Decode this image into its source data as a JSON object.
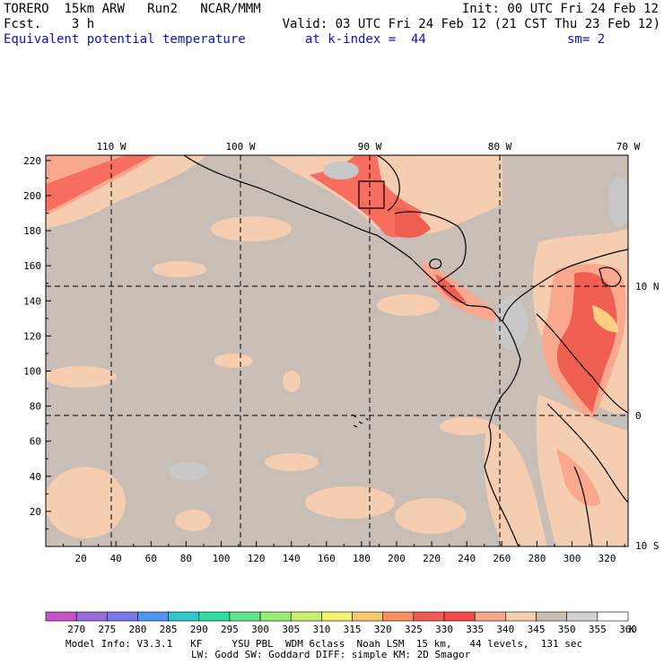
{
  "header": {
    "model": "TORERO",
    "resolution": "15km ARW",
    "run": "Run2",
    "org": "NCAR/MMM",
    "init": "Init: 00 UTC Fri 24 Feb 12",
    "fcst_label": "Fcst.",
    "fcst_value": "3 h",
    "valid": "Valid: 03 UTC Fri 24 Feb 12 (21 CST Thu 23 Feb 12)",
    "field": "Equivalent potential temperature",
    "level": "at k-index =  44",
    "smoothing": "sm= 2"
  },
  "map": {
    "top_lon_labels": [
      "110 W",
      "100 W",
      "90 W",
      "80 W",
      "70 W"
    ],
    "right_lat_labels": [
      "10 N",
      "0",
      "10 S"
    ],
    "left_grid_labels": [
      "220",
      "200",
      "180",
      "160",
      "140",
      "120",
      "100",
      "80",
      "60",
      "40",
      "20"
    ],
    "bottom_grid_labels": [
      "20",
      "40",
      "60",
      "80",
      "100",
      "120",
      "140",
      "160",
      "180",
      "200",
      "220",
      "240",
      "260",
      "280",
      "300",
      "320"
    ],
    "colors": {
      "background_gray": "#c8beb6",
      "c340": "#f5cdb1",
      "c335": "#f8a88c",
      "c330": "#f76e60",
      "c325": "#f05e52",
      "coast": "#000000",
      "light_gray": "#c8c8c8"
    }
  },
  "colorbar": {
    "labels": [
      "270",
      "275",
      "280",
      "285",
      "290",
      "295",
      "300",
      "305",
      "310",
      "315",
      "320",
      "325",
      "330",
      "335",
      "340",
      "345",
      "350",
      "355",
      "360"
    ],
    "unit": "K",
    "colors": [
      "#c855c8",
      "#9a6ad8",
      "#7a78e8",
      "#4e96f0",
      "#30c8c8",
      "#30dca6",
      "#60e68c",
      "#98ee78",
      "#c8f070",
      "#f6f070",
      "#f8c86e",
      "#f89060",
      "#f05e52",
      "#f54a48",
      "#f8a88c",
      "#f5cdb1",
      "#c8beb6",
      "#d2d2d2",
      "#ffffff"
    ]
  },
  "footer": {
    "line1": "Model Info: V3.3.1   KF     YSU PBL  WDM 6class  Noah LSM  15 km,   44 levels,  131 sec",
    "line2": "LW: Godd SW: Goddard DIFF: simple KM: 2D Smagor"
  }
}
